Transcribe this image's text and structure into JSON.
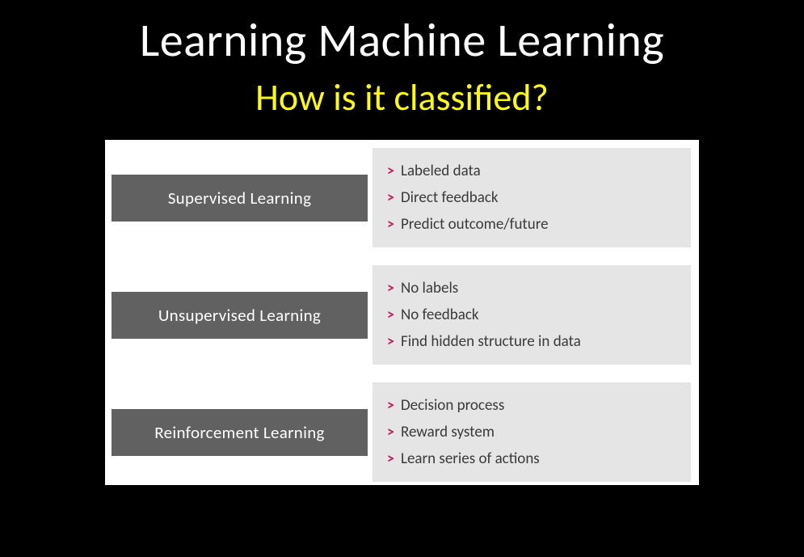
{
  "slide": {
    "title": "Learning Machine Learning",
    "subtitle": "How is it classified?",
    "background_color": "#000000",
    "title_color": "#ffffff",
    "title_fontsize": 58,
    "subtitle_color": "#ffff00",
    "subtitle_fontsize": 46
  },
  "diagram": {
    "container_bg": "#ffffff",
    "label_bg": "#616161",
    "label_color": "#ffffff",
    "label_fontsize": 21,
    "bullets_bg": "#e5e5e5",
    "bullet_text_color": "#3a3a3a",
    "bullet_arrow_color": "#c2185b",
    "bullet_fontsize": 19,
    "arrow_glyph": ">",
    "categories": [
      {
        "label": "Supervised Learning",
        "bullets": [
          "Labeled data",
          "Direct feedback",
          "Predict outcome/future"
        ]
      },
      {
        "label": "Unsupervised Learning",
        "bullets": [
          "No labels",
          "No feedback",
          "Find hidden structure in data"
        ]
      },
      {
        "label": "Reinforcement Learning",
        "bullets": [
          "Decision process",
          "Reward system",
          "Learn series of actions"
        ]
      }
    ]
  }
}
